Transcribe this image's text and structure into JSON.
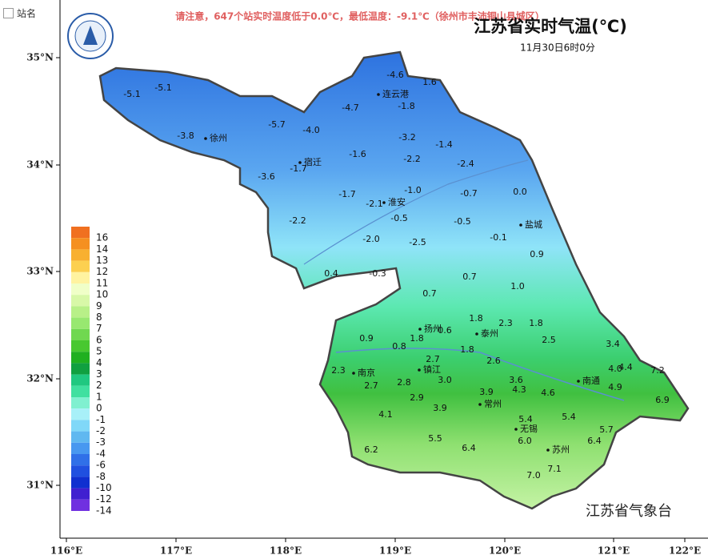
{
  "toggle_label": "站名",
  "notice": "请注意，647个站实时温度低于0.0℃，最低温度：-9.1℃（徐州市丰沛铜山县城区）",
  "title": "江苏省实时气温(℃)",
  "subtitle": "11月30日6时0分",
  "footer": "江苏省气象台",
  "lat_ticks": [
    "35°N",
    "34°N",
    "33°N",
    "32°N",
    "31°N"
  ],
  "lon_ticks": [
    "116°E",
    "117°E",
    "118°E",
    "119°E",
    "120°E",
    "121°E",
    "122°E"
  ],
  "legend": [
    {
      "label": 16,
      "color": "#f07020"
    },
    {
      "label": 14,
      "color": "#f59020"
    },
    {
      "label": 13,
      "color": "#f8b030"
    },
    {
      "label": 12,
      "color": "#fcd050"
    },
    {
      "label": 11,
      "color": "#fff3a0"
    },
    {
      "label": 10,
      "color": "#f0ffc8"
    },
    {
      "label": 9,
      "color": "#d8f8a8"
    },
    {
      "label": 8,
      "color": "#b8f088"
    },
    {
      "label": 7,
      "color": "#98e870"
    },
    {
      "label": 6,
      "color": "#70d850"
    },
    {
      "label": 5,
      "color": "#48c830"
    },
    {
      "label": 4,
      "color": "#20b020"
    },
    {
      "label": 3,
      "color": "#10a040"
    },
    {
      "label": 2,
      "color": "#20c880"
    },
    {
      "label": 1,
      "color": "#40e0a0"
    },
    {
      "label": 0,
      "color": "#80f0d0"
    },
    {
      "label": -1,
      "color": "#a8f0f8"
    },
    {
      "label": -2,
      "color": "#80d8f8"
    },
    {
      "label": -3,
      "color": "#60b8f0"
    },
    {
      "label": -4,
      "color": "#4898f0"
    },
    {
      "label": -6,
      "color": "#3070e8"
    },
    {
      "label": -8,
      "color": "#2050e0"
    },
    {
      "label": -10,
      "color": "#1030d0"
    },
    {
      "label": -12,
      "color": "#4020d0"
    },
    {
      "label": -14,
      "color": "#7030e0"
    }
  ],
  "cities": [
    "徐州",
    "连云港",
    "宿迁",
    "淮安",
    "盐城",
    "扬州",
    "泰州",
    "南京",
    "镇江",
    "南通",
    "常州",
    "无锡",
    "苏州"
  ],
  "stations": [
    "-5.1",
    "-5.1",
    "-4.6",
    "1.6",
    "-4.7",
    "-1.8",
    "-5.7",
    "-4.0",
    "-3.8",
    "-3.2",
    "-1.4",
    "-1.6",
    "-2.2",
    "-2.4",
    "-1.7",
    "-3.6",
    "-1.0",
    "-0.7",
    "0.0",
    "-1.7",
    "-2.1",
    "-0.5",
    "-0.5",
    "-2.2",
    "-2.0",
    "-2.5",
    "-0.1",
    "0.9",
    "0.4",
    "-0.3",
    "0.7",
    "1.0",
    "0.7",
    "1.8",
    "2.3",
    "1.8",
    "0.6",
    "1.8",
    "0.9",
    "0.8",
    "1.8",
    "2.5",
    "3.4",
    "2.7",
    "2.6",
    "2.3",
    "4.0",
    "4.4",
    "7.2",
    "2.7",
    "2.8",
    "3.0",
    "3.6",
    "4.3",
    "3.9",
    "4.6",
    "4.9",
    "2.9",
    "6.9",
    "3.9",
    "4.1",
    "5.4",
    "5.4",
    "5.7",
    "5.5",
    "6.0",
    "6.4",
    "6.2",
    "6.4",
    "7.1",
    "7.0"
  ]
}
